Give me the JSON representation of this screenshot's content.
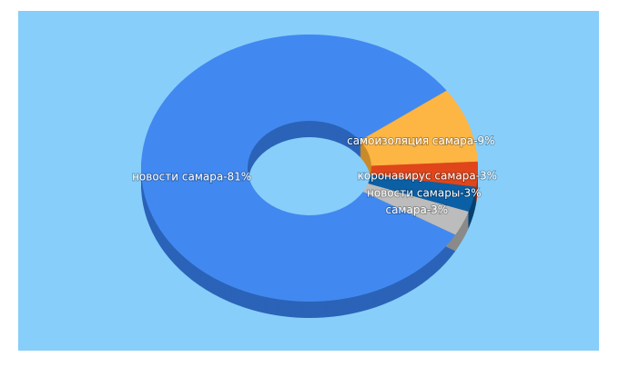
{
  "chart_data": {
    "type": "pie",
    "values": [
      81,
      9,
      3,
      3,
      3
    ],
    "value_labels": [
      "новости самара-81%",
      "самоизоляция самара-9%",
      "коронавирус самара-3%",
      "новости самары-3%",
      "самара-3%"
    ],
    "colors": [
      "#4189f0",
      "#fdb543",
      "#e0461a",
      "#0b5fa5",
      "#bcbcbc"
    ],
    "side_colors": [
      "#2a63b8",
      "#c98a2a",
      "#a53210",
      "#07406f",
      "#8a8a8a"
    ]
  }
}
